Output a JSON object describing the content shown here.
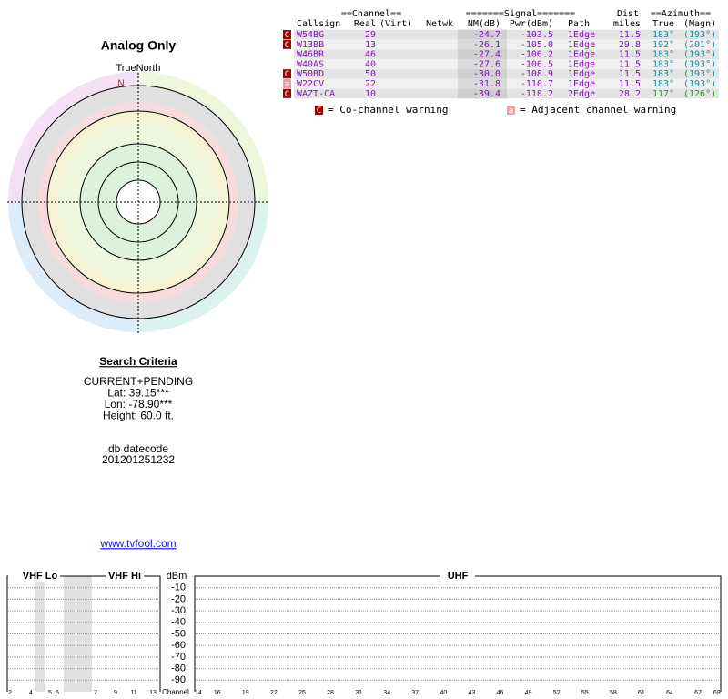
{
  "title": "Analog Only",
  "compass": {
    "label": "TrueNorth",
    "north": "N"
  },
  "table": {
    "group_headers": [
      "==Channel==",
      "=======Signal=======",
      "Dist",
      "==Azimuth=="
    ],
    "columns": [
      "Callsign",
      "Real",
      "(Virt)",
      "Netwk",
      "NM(dB)",
      "Pwr(dBm)",
      "Path",
      "miles",
      "True",
      "(Magn)"
    ],
    "warnings": [
      "C",
      "C",
      null,
      null,
      "C",
      "a",
      "C"
    ],
    "rows": [
      [
        "W54BG",
        29,
        "-24.7",
        "-103.5",
        "1Edge",
        "11.5",
        "183°",
        "(193°)"
      ],
      [
        "W13BB",
        13,
        "-26.1",
        "-105.0",
        "1Edge",
        "29.8",
        "192°",
        "(201°)"
      ],
      [
        "W46BR",
        46,
        "-27.4",
        "-106.2",
        "1Edge",
        "11.5",
        "183°",
        "(193°)"
      ],
      [
        "W40AS",
        40,
        "-27.6",
        "-106.5",
        "1Edge",
        "11.5",
        "183°",
        "(193°)"
      ],
      [
        "W50BD",
        50,
        "-30.0",
        "-108.9",
        "1Edge",
        "11.5",
        "183°",
        "(193°)"
      ],
      [
        "W22CV",
        22,
        "-31.8",
        "-110.7",
        "1Edge",
        "11.5",
        "183°",
        "(193°)"
      ],
      [
        "WAZT-CA",
        10,
        "-39.4",
        "-118.2",
        "2Edge",
        "28.2",
        "117°",
        "(126°)"
      ]
    ],
    "legend": [
      {
        "icon": "C",
        "text": "= Co-channel warning"
      },
      {
        "icon": "a",
        "text": "= Adjacent channel warning"
      }
    ]
  },
  "search": {
    "title": "Search Criteria",
    "lines": [
      "CURRENT+PENDING",
      "Lat: 39.15***",
      "Lon: -78.90***",
      "Height: 60.0 ft."
    ],
    "datecode_label": "db datecode",
    "datecode": "201201251232",
    "link": "www.tvfool.com"
  },
  "channel_chart": {
    "bands": [
      "VHF Lo",
      "VHF Hi",
      "UHF"
    ],
    "y_label": "dBm",
    "x_label": "Channel",
    "ylim": [
      0,
      -100
    ],
    "yticks": [
      -10,
      -20,
      -30,
      -40,
      -50,
      -60,
      -70,
      -80,
      -90
    ],
    "vhf_channels": [
      2,
      4,
      5,
      6,
      7,
      9,
      11,
      13
    ],
    "uhf_channels": [
      14,
      16,
      19,
      22,
      25,
      28,
      31,
      34,
      37,
      40,
      43,
      46,
      49,
      52,
      55,
      58,
      61,
      64,
      67,
      69
    ]
  }
}
